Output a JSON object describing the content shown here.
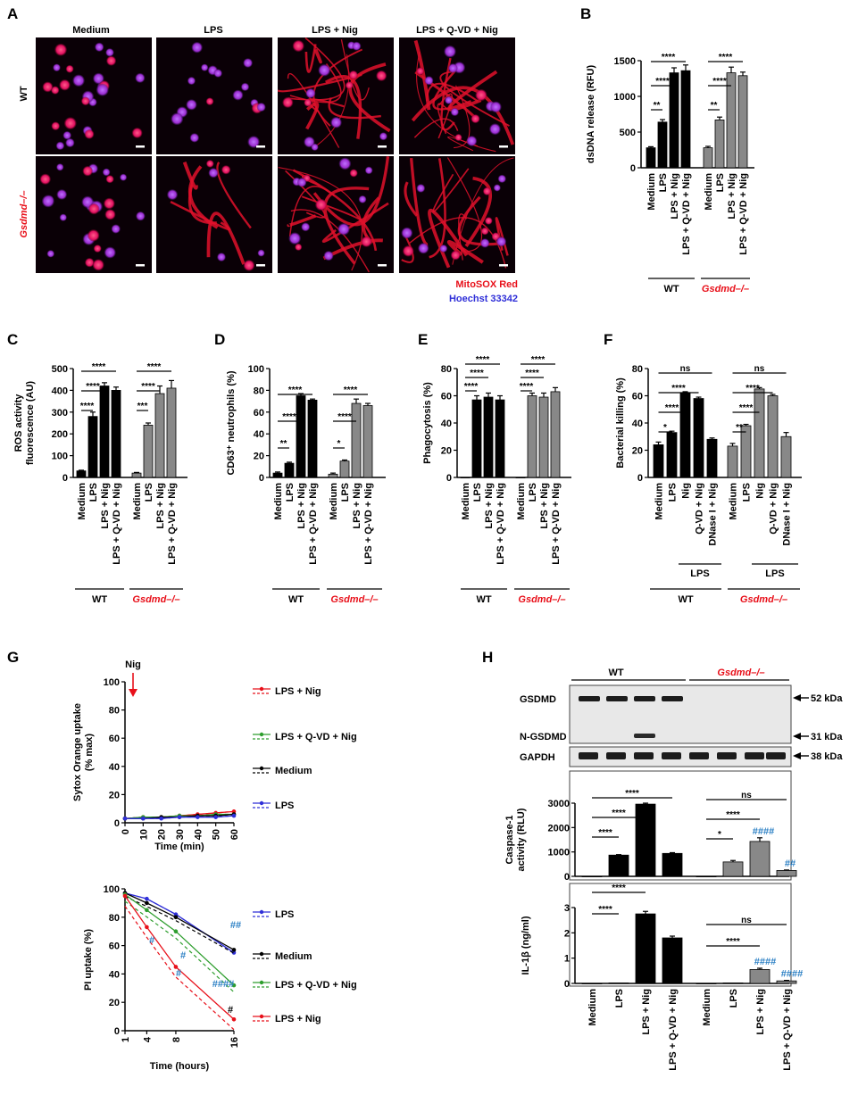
{
  "panel_letters": [
    "A",
    "B",
    "C",
    "D",
    "E",
    "F",
    "G",
    "H"
  ],
  "colors": {
    "red": "#e8101a",
    "blue": "#2f2fd8",
    "hash": "#2a7fc4",
    "wt_bar": "#000000",
    "ko_bar": "#888888",
    "mito": "#e8101a",
    "hoechst": "#2f2fd8"
  },
  "panelA": {
    "col_headers": [
      "Medium",
      "LPS",
      "LPS + Nig",
      "LPS + Q-VD  + Nig"
    ],
    "row_labels": [
      "WT",
      "Gsdmd–/–"
    ],
    "legend_mito": "MitoSOX Red",
    "legend_hoechst": "Hoechst 33342"
  },
  "labels": {
    "wt": "WT",
    "ko": "Gsdmd–/–",
    "lps": "LPS",
    "ns": "ns",
    "nig_arrow": "Nig"
  },
  "chart_data": [
    {
      "panel": "B",
      "type": "bar",
      "ylabel": "dsDNA release (RFU)",
      "ylim": [
        0,
        1500
      ],
      "yticks": [
        0,
        500,
        1000,
        1500
      ],
      "categories": [
        "Medium",
        "LPS",
        "LPS + Nig",
        "LPS + Q-VD + Nig",
        "Medium",
        "LPS",
        "LPS + Nig",
        "LPS + Q-VD + Nig"
      ],
      "groups": [
        "WT",
        "WT",
        "WT",
        "WT",
        "Gsdmd–/–",
        "Gsdmd–/–",
        "Gsdmd–/–",
        "Gsdmd–/–"
      ],
      "values": [
        280,
        640,
        1330,
        1360,
        280,
        670,
        1330,
        1290
      ],
      "errors": [
        15,
        35,
        70,
        80,
        20,
        40,
        80,
        50
      ],
      "sig": [
        {
          "from": 0,
          "to": 1,
          "text": "**"
        },
        {
          "from": 0,
          "to": 2,
          "text": "****"
        },
        {
          "from": 0,
          "to": 3,
          "text": "****"
        },
        {
          "from": 4,
          "to": 5,
          "text": "**"
        },
        {
          "from": 4,
          "to": 6,
          "text": "****"
        },
        {
          "from": 4,
          "to": 7,
          "text": "****"
        }
      ]
    },
    {
      "panel": "C",
      "type": "bar",
      "ylabel": "ROS activity\nfluorescence (AU)",
      "ylim": [
        0,
        500
      ],
      "yticks": [
        0,
        100,
        200,
        300,
        400,
        500
      ],
      "categories": [
        "Medium",
        "LPS",
        "LPS + Nig",
        "LPS + Q-VD + Nig",
        "Medium",
        "LPS",
        "LPS + Nig",
        "LPS + Q-VD + Nig"
      ],
      "groups": [
        "WT",
        "WT",
        "WT",
        "WT",
        "Gsdmd–/–",
        "Gsdmd–/–",
        "Gsdmd–/–",
        "Gsdmd–/–"
      ],
      "values": [
        30,
        280,
        420,
        400,
        20,
        240,
        385,
        410
      ],
      "errors": [
        3,
        20,
        15,
        15,
        3,
        10,
        35,
        35
      ],
      "sig": [
        {
          "from": 0,
          "to": 1,
          "text": "****"
        },
        {
          "from": 0,
          "to": 2,
          "text": "****"
        },
        {
          "from": 0,
          "to": 3,
          "text": "****"
        },
        {
          "from": 4,
          "to": 5,
          "text": "***"
        },
        {
          "from": 4,
          "to": 6,
          "text": "****"
        },
        {
          "from": 4,
          "to": 7,
          "text": "****"
        }
      ]
    },
    {
      "panel": "D",
      "type": "bar",
      "ylabel": "CD63⁺ neutrophils (%)",
      "ylim": [
        0,
        100
      ],
      "yticks": [
        0,
        20,
        40,
        60,
        80,
        100
      ],
      "categories": [
        "Medium",
        "LPS",
        "LPS + Nig",
        "LPS + Q-VD + Nig",
        "Medium",
        "LPS",
        "LPS + Nig",
        "LPS + Q-VD + Nig"
      ],
      "groups": [
        "WT",
        "WT",
        "WT",
        "WT",
        "Gsdmd–/–",
        "Gsdmd–/–",
        "Gsdmd–/–",
        "Gsdmd–/–"
      ],
      "values": [
        4,
        13,
        75,
        71,
        3,
        15,
        68,
        66
      ],
      "errors": [
        1,
        1,
        2,
        1,
        1,
        1,
        4,
        2
      ],
      "sig": [
        {
          "from": 0,
          "to": 1,
          "text": "**"
        },
        {
          "from": 0,
          "to": 2,
          "text": "****"
        },
        {
          "from": 0,
          "to": 3,
          "text": "****"
        },
        {
          "from": 4,
          "to": 5,
          "text": "*"
        },
        {
          "from": 4,
          "to": 6,
          "text": "****"
        },
        {
          "from": 4,
          "to": 7,
          "text": "****"
        }
      ]
    },
    {
      "panel": "E",
      "type": "bar",
      "ylabel": "Phagocytosis (%)",
      "ylim": [
        0,
        80
      ],
      "yticks": [
        0,
        20,
        40,
        60,
        80
      ],
      "categories": [
        "Medium",
        "LPS",
        "LPS + Nig",
        "LPS + Q-VD + Nig",
        "Medium",
        "LPS",
        "LPS + Nig",
        "LPS + Q-VD + Nig"
      ],
      "groups": [
        "WT",
        "WT",
        "WT",
        "WT",
        "Gsdmd–/–",
        "Gsdmd–/–",
        "Gsdmd–/–",
        "Gsdmd–/–"
      ],
      "values": [
        0,
        57,
        59,
        57,
        0,
        60,
        59,
        63
      ],
      "errors": [
        0,
        3,
        3,
        3,
        0,
        2,
        3,
        3
      ],
      "sig": [
        {
          "from": 0,
          "to": 1,
          "text": "****"
        },
        {
          "from": 0,
          "to": 2,
          "text": "****"
        },
        {
          "from": 0,
          "to": 3,
          "text": "****"
        },
        {
          "from": 4,
          "to": 5,
          "text": "****"
        },
        {
          "from": 4,
          "to": 6,
          "text": "****"
        },
        {
          "from": 4,
          "to": 7,
          "text": "****"
        }
      ]
    },
    {
      "panel": "F",
      "type": "bar",
      "ylabel": "Bacterial killing (%)",
      "ylim": [
        0,
        80
      ],
      "yticks": [
        0,
        20,
        40,
        60,
        80
      ],
      "categories": [
        "Medium",
        "LPS",
        "Nig",
        "Q-VD + Nig",
        "DNase I + Nig",
        "Medium",
        "LPS",
        "Nig",
        "Q-VD + Nig",
        "DNase I + Nig"
      ],
      "groups": [
        "WT",
        "WT",
        "WT",
        "WT",
        "WT",
        "Gsdmd–/–",
        "Gsdmd–/–",
        "Gsdmd–/–",
        "Gsdmd–/–",
        "Gsdmd–/–"
      ],
      "values": [
        24,
        33,
        62,
        58,
        28,
        23,
        38,
        65,
        60,
        30
      ],
      "errors": [
        2,
        1,
        1,
        1,
        1,
        2,
        1,
        1,
        1,
        3
      ],
      "sig": [
        {
          "from": 0,
          "to": 1,
          "text": "*"
        },
        {
          "from": 0,
          "to": 2,
          "text": "****"
        },
        {
          "from": 0,
          "to": 3,
          "text": "****"
        },
        {
          "from": 0,
          "to": 4,
          "text": "ns"
        },
        {
          "from": 5,
          "to": 6,
          "text": "**"
        },
        {
          "from": 5,
          "to": 7,
          "text": "****"
        },
        {
          "from": 5,
          "to": 8,
          "text": "****"
        },
        {
          "from": 5,
          "to": 9,
          "text": "ns"
        }
      ]
    },
    {
      "panel": "G-top",
      "type": "line",
      "xlabel": "Time (min)",
      "ylabel": "Sytox Orange uptake\n(% max)",
      "xlim": [
        0,
        60
      ],
      "ylim": [
        0,
        100
      ],
      "xticks": [
        0,
        10,
        20,
        30,
        40,
        50,
        60
      ],
      "yticks": [
        0,
        20,
        40,
        60,
        80,
        100
      ],
      "x": [
        0,
        10,
        20,
        30,
        40,
        50,
        60
      ],
      "series": [
        {
          "name": "LPS + Nig",
          "color": "#e8101a",
          "values": [
            3,
            4,
            4,
            5,
            6,
            7,
            8
          ]
        },
        {
          "name": "LPS + Q-VD + Nig",
          "color": "#2e9e2e",
          "values": [
            3,
            4,
            4,
            5,
            5,
            6,
            6
          ]
        },
        {
          "name": "Medium",
          "color": "#000000",
          "values": [
            3,
            3,
            4,
            4,
            5,
            5,
            6
          ]
        },
        {
          "name": "LPS",
          "color": "#2f2fd8",
          "values": [
            3,
            3,
            3,
            4,
            4,
            4,
            5
          ]
        }
      ]
    },
    {
      "panel": "G-bottom",
      "type": "line",
      "xlabel": "Time (hours)",
      "ylabel": "PI uptake (%)",
      "xlim": [
        1,
        16
      ],
      "ylim": [
        0,
        100
      ],
      "xticks": [
        1,
        4,
        8,
        16
      ],
      "yticks": [
        0,
        20,
        40,
        60,
        80,
        100
      ],
      "x": [
        1,
        4,
        8,
        16
      ],
      "series": [
        {
          "name": "LPS",
          "color": "#2f2fd8",
          "values": [
            97,
            93,
            82,
            55
          ]
        },
        {
          "name": "Medium",
          "color": "#000000",
          "values": [
            97,
            90,
            80,
            57
          ]
        },
        {
          "name": "LPS + Q-VD + Nig",
          "color": "#2e9e2e",
          "values": [
            96,
            85,
            70,
            32
          ]
        },
        {
          "name": "LPS + Nig",
          "color": "#e8101a",
          "values": [
            95,
            73,
            45,
            8
          ]
        }
      ]
    },
    {
      "panel": "H-mid",
      "type": "bar",
      "ylabel": "Caspase-1\nactivity (RLU)",
      "ylim": [
        0,
        3000
      ],
      "yticks": [
        0,
        1000,
        2000,
        3000
      ],
      "categories": [
        "Medium",
        "LPS",
        "LPS + Nig",
        "LPS + Q-VD + Nig",
        "Medium",
        "LPS",
        "LPS + Nig",
        "LPS + Q-VD + Nig"
      ],
      "values": [
        0,
        870,
        2960,
        940,
        0,
        590,
        1430,
        240
      ],
      "errors": [
        0,
        20,
        40,
        30,
        0,
        60,
        150,
        20
      ],
      "sig": [
        {
          "from": 0,
          "to": 1,
          "text": "****"
        },
        {
          "from": 0,
          "to": 2,
          "text": "****"
        },
        {
          "from": 0,
          "to": 3,
          "text": "****"
        },
        {
          "from": 4,
          "to": 5,
          "text": "*"
        },
        {
          "from": 4,
          "to": 6,
          "text": "****"
        },
        {
          "from": 4,
          "to": 7,
          "text": "ns"
        }
      ],
      "hashes": [
        {
          "bar": 6,
          "text": "####"
        },
        {
          "bar": 7,
          "text": "##"
        }
      ]
    },
    {
      "panel": "H-bottom",
      "type": "bar",
      "ylabel": "IL-1β (ng/ml)",
      "ylim": [
        0,
        3
      ],
      "yticks": [
        0,
        1,
        2,
        3
      ],
      "categories": [
        "Medium",
        "LPS",
        "LPS + Nig",
        "LPS + Q-VD + Nig",
        "Medium",
        "LPS",
        "LPS + Nig",
        "LPS + Q-VD + Nig"
      ],
      "values": [
        0,
        0.02,
        2.75,
        1.8,
        0,
        0.02,
        0.55,
        0.1
      ],
      "errors": [
        0,
        0,
        0.1,
        0.07,
        0,
        0,
        0.05,
        0.02
      ],
      "sig": [
        {
          "from": 0,
          "to": 1,
          "text": "****"
        },
        {
          "from": 0,
          "to": 2,
          "text": "****"
        },
        {
          "from": 4,
          "to": 6,
          "text": "****"
        },
        {
          "from": 4,
          "to": 7,
          "text": "ns"
        }
      ],
      "hashes": [
        {
          "bar": 6,
          "text": "####"
        },
        {
          "bar": 7,
          "text": "####"
        }
      ]
    }
  ],
  "panelG": {
    "top_hashes": [],
    "bottom_hashes": [
      "##",
      "#",
      "#",
      "#",
      "####",
      "#"
    ]
  },
  "panelH": {
    "blot_labels": [
      "GSDMD",
      "N-GSDMD",
      "GAPDH"
    ],
    "kda": [
      "52 kDa",
      "31 kDa",
      "38 kDa"
    ]
  }
}
